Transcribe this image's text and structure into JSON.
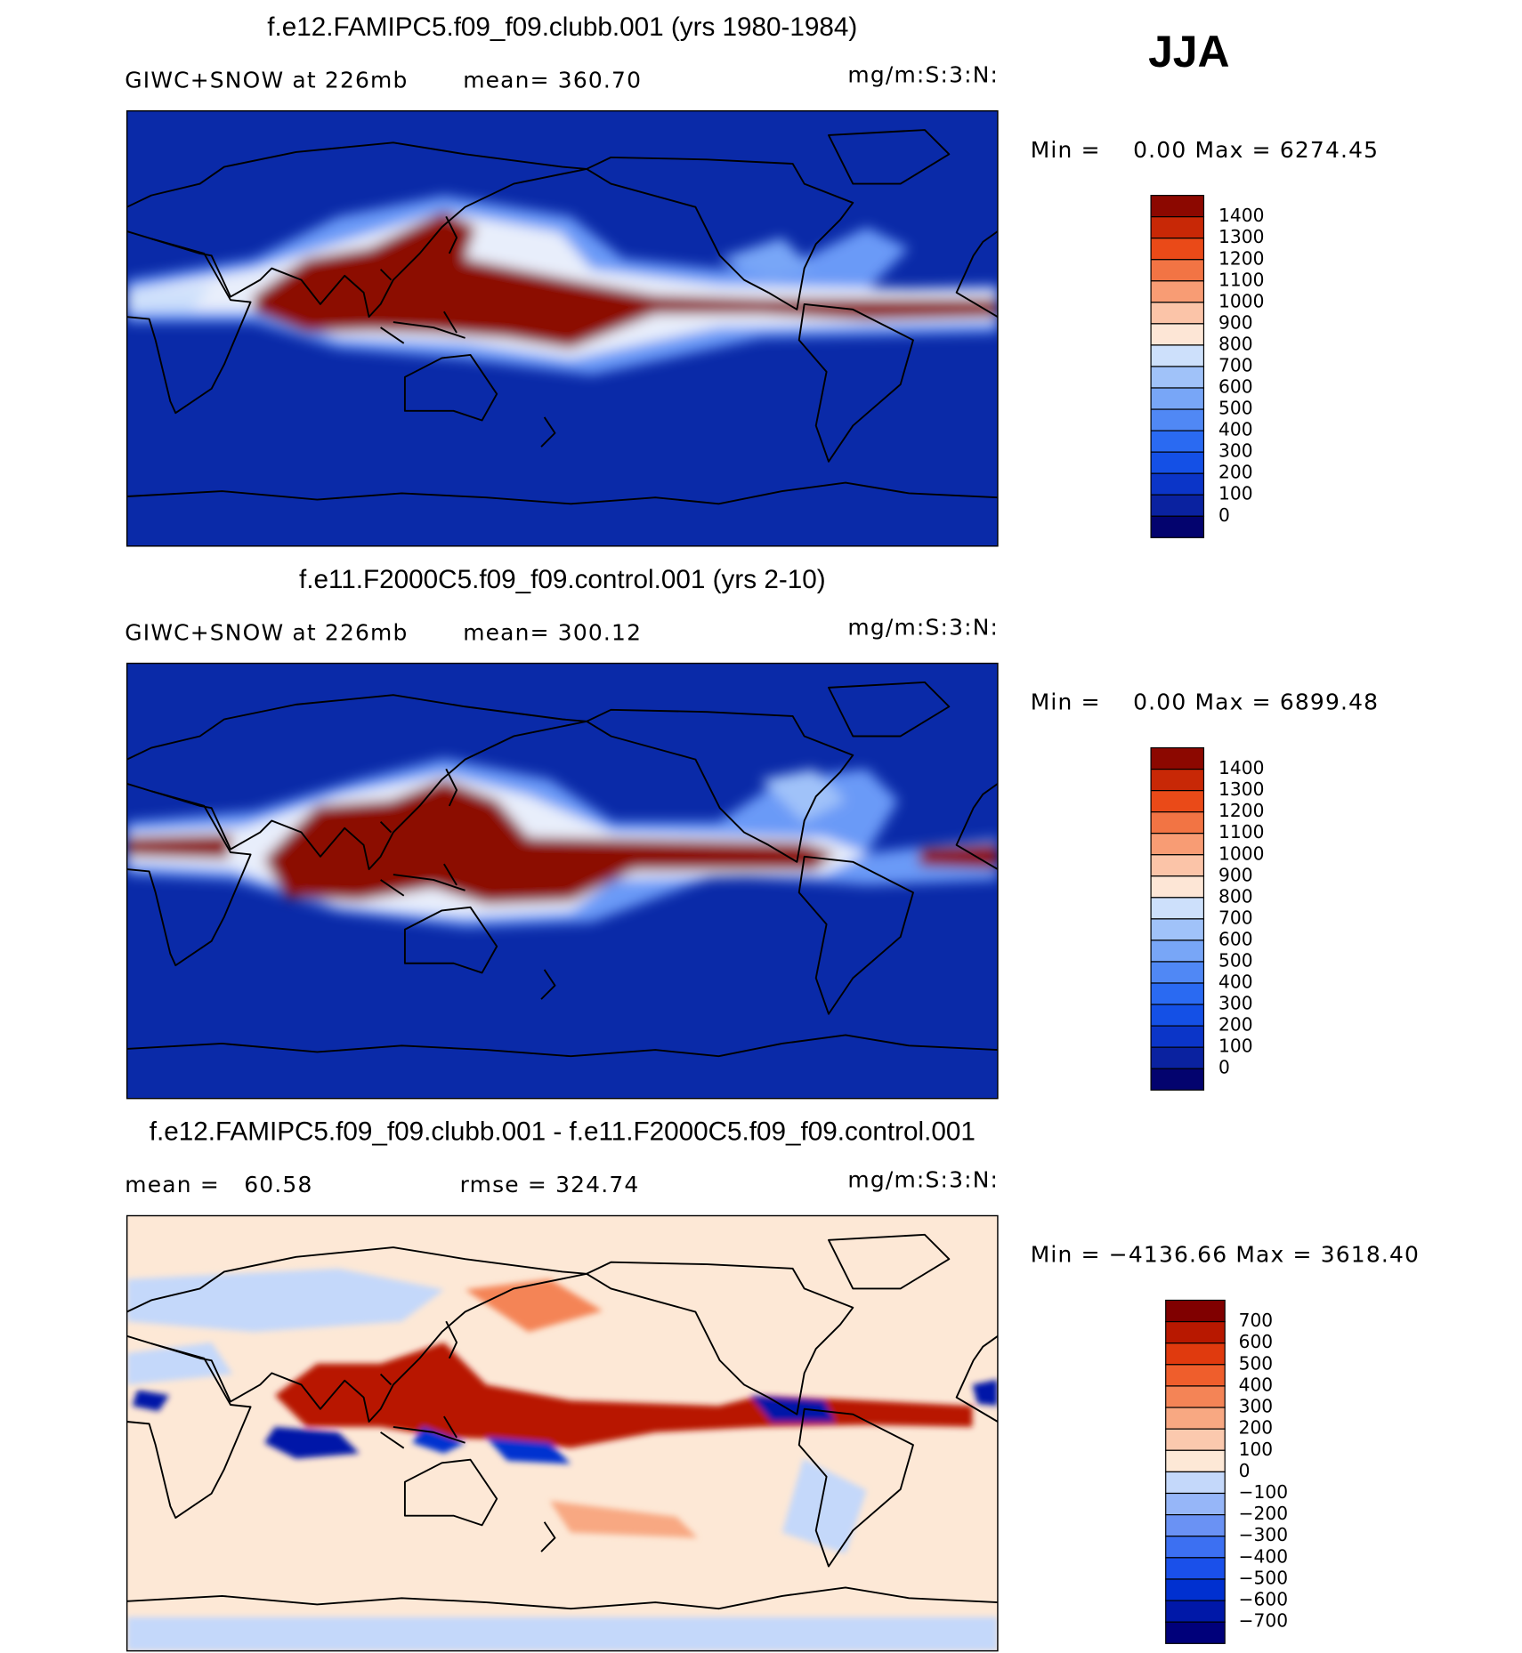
{
  "header": {
    "season": "JJA"
  },
  "panels": [
    {
      "title": "f.e12.FAMIPC5.f09_f09.clubb.001 (yrs 1980-1984)",
      "left_label": "GIWC+SNOW at 226mb",
      "center_label": "mean= 360.70",
      "units": "mg/m:S:3:N:",
      "range": "Min =    0.00 Max = 6274.45",
      "colorbar": {
        "labels": [
          "1400",
          "1300",
          "1200",
          "1100",
          "1000",
          "900",
          "800",
          "700",
          "600",
          "500",
          "400",
          "300",
          "200",
          "100",
          "0"
        ],
        "colors": [
          "#8c0800",
          "#c82806",
          "#ea4a18",
          "#f27444",
          "#f89c74",
          "#fbc4a8",
          "#fde6d6",
          "#cde0fb",
          "#a0c2f9",
          "#78a6f7",
          "#5088f5",
          "#2a6af2",
          "#1450e6",
          "#0b35c8",
          "#0a22a0",
          "#03036e"
        ]
      }
    },
    {
      "title": "f.e11.F2000C5.f09_f09.control.001 (yrs 2-10)",
      "left_label": "GIWC+SNOW at 226mb",
      "center_label": "mean= 300.12",
      "units": "mg/m:S:3:N:",
      "range": "Min =    0.00 Max = 6899.48",
      "colorbar": {
        "labels": [
          "1400",
          "1300",
          "1200",
          "1100",
          "1000",
          "900",
          "800",
          "700",
          "600",
          "500",
          "400",
          "300",
          "200",
          "100",
          "0"
        ],
        "colors": [
          "#8c0800",
          "#c82806",
          "#ea4a18",
          "#f27444",
          "#f89c74",
          "#fbc4a8",
          "#fde6d6",
          "#cde0fb",
          "#a0c2f9",
          "#78a6f7",
          "#5088f5",
          "#2a6af2",
          "#1450e6",
          "#0b35c8",
          "#0a22a0",
          "#03036e"
        ]
      }
    },
    {
      "title": "f.e12.FAMIPC5.f09_f09.clubb.001 - f.e11.F2000C5.f09_f09.control.001",
      "left_label": "mean =   60.58",
      "center_label": "rmse = 324.74",
      "units": "mg/m:S:3:N:",
      "range": "Min = −4136.66 Max = 3618.40",
      "colorbar": {
        "labels": [
          "700",
          "600",
          "500",
          "400",
          "300",
          "200",
          "100",
          "0",
          "−100",
          "−200",
          "−300",
          "−400",
          "−500",
          "−600",
          "−700"
        ],
        "colors": [
          "#800000",
          "#b81800",
          "#e03a0e",
          "#ef5e2c",
          "#f48456",
          "#f8a882",
          "#fbc9ae",
          "#fde8d6",
          "#c4d8fa",
          "#96b6f8",
          "#6a92f4",
          "#3c70f2",
          "#1a50ea",
          "#0030d0",
          "#0018a8",
          "#00007a"
        ]
      }
    }
  ]
}
